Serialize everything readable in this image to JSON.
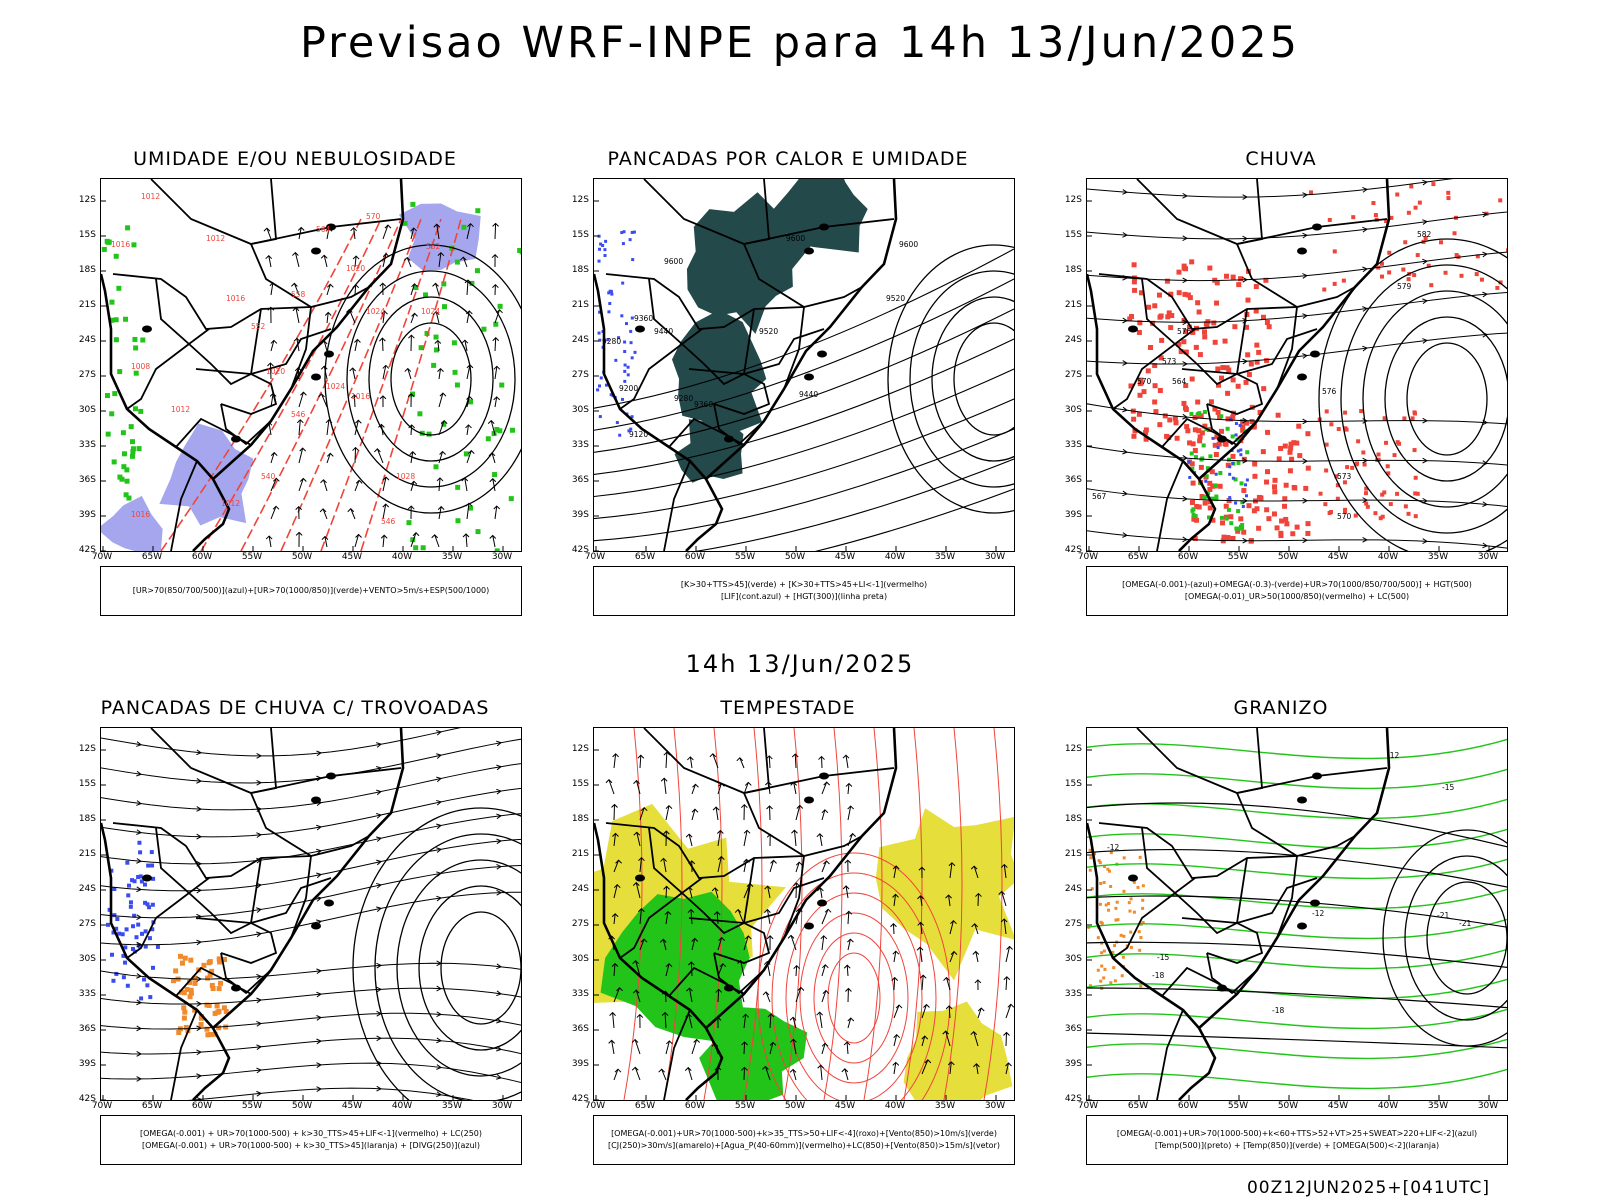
{
  "header": {
    "title": "Previsao WRF-INPE  para 14h 13/Jun/2025",
    "subtitle": "14h 13/Jun/2025",
    "footer": "00Z12JUN2025+[041UTC]"
  },
  "axes": {
    "lat_labels": [
      "12S",
      "15S",
      "18S",
      "21S",
      "24S",
      "27S",
      "30S",
      "33S",
      "36S",
      "39S",
      "42S"
    ],
    "lon_labels": [
      "70W",
      "65W",
      "60W",
      "55W",
      "50W",
      "45W",
      "40W",
      "35W",
      "30W"
    ]
  },
  "colors": {
    "blue": "#3a4cf0",
    "green": "#22c41a",
    "red": "#f0443a",
    "orange": "#f08a2a",
    "yellow": "#e6de3a",
    "dark_teal": "#24494a",
    "lavender": "#a6a6ee"
  },
  "panels": [
    {
      "id": "umidade",
      "title": "UMIDADE E/OU NEBULOSIDADE",
      "legend": [
        "[UR>70(850/700/500)](azul)+[UR>70(1000/850)](verde)+VENTO>5m/s+ESP(500/1000)"
      ],
      "labels": [
        "1012",
        "1012",
        "1016",
        "1020",
        "1024",
        "1024",
        "1028",
        "1016",
        "1008",
        "1012",
        "1016",
        "1012",
        "1020",
        "1024",
        "1016",
        "570",
        "564",
        "558",
        "552",
        "546",
        "540",
        "546",
        "552"
      ]
    },
    {
      "id": "pancadas_calor",
      "title": "PANCADAS POR CALOR E UMIDADE",
      "legend": [
        "[K>30+TTS>45](verde) + [K>30+TTS>45+LI<-1](vermelho)",
        "[LIF](cont.azul) + [HGT(300)](linha preta)"
      ],
      "labels": [
        "9600",
        "9600",
        "9520",
        "9440",
        "9360",
        "9280",
        "9200",
        "9120",
        "9280",
        "9360",
        "9440",
        "9520",
        "9600"
      ]
    },
    {
      "id": "chuva",
      "title": "CHUVA",
      "legend": [
        "[OMEGA(-0.001)-(azul)+OMEGA(-0.3)-(verde)+UR>70(1000/850/700/500)] + HGT(500)",
        "[OMEGA(-0.01)_UR>50(1000/850)(vermelho) + LC(500)"
      ],
      "labels": [
        "582",
        "579",
        "576",
        "573",
        "570",
        "567",
        "564",
        "573",
        "570",
        "576"
      ]
    },
    {
      "id": "trovoadas",
      "title": "PANCADAS DE CHUVA C/ TROVOADAS",
      "legend": [
        "[OMEGA(-0.001) + UR>70(1000-500) + k>30_TTS>45+LIF<-1](vermelho) + LC(250)",
        "[OMEGA(-0.001) + UR>70(1000-500) + k>30_TTS>45](laranja) + [DIVG(250)](azul)"
      ],
      "labels": []
    },
    {
      "id": "tempestade",
      "title": "TEMPESTADE",
      "legend": [
        "[OMEGA(-0.001)+UR>70(1000-500)+k>35_TTS>50+LIF<-4](roxo)+[Vento(850)>10m/s](verde)",
        "[CJ(250)>30m/s](amarelo)+[Agua_P(40-60mm)](vermelho)+LC(850)+[Vento(850)>15m/s](vetor)"
      ],
      "labels": []
    },
    {
      "id": "granizo",
      "title": "GRANIZO",
      "legend": [
        "[OMEGA(-0.001)+UR>70(1000-500)+k<60+TTS>52+VT>25+SWEAT>220+LIF<-2](azul)",
        "[Temp(500)](preto) + [Temp(850)](verde) + [OMEGA(500)<-2](laranja)"
      ],
      "labels": [
        "-12",
        "-12",
        "-15",
        "-18",
        "-18",
        "-21",
        "-15",
        "-21",
        "-12"
      ]
    }
  ]
}
